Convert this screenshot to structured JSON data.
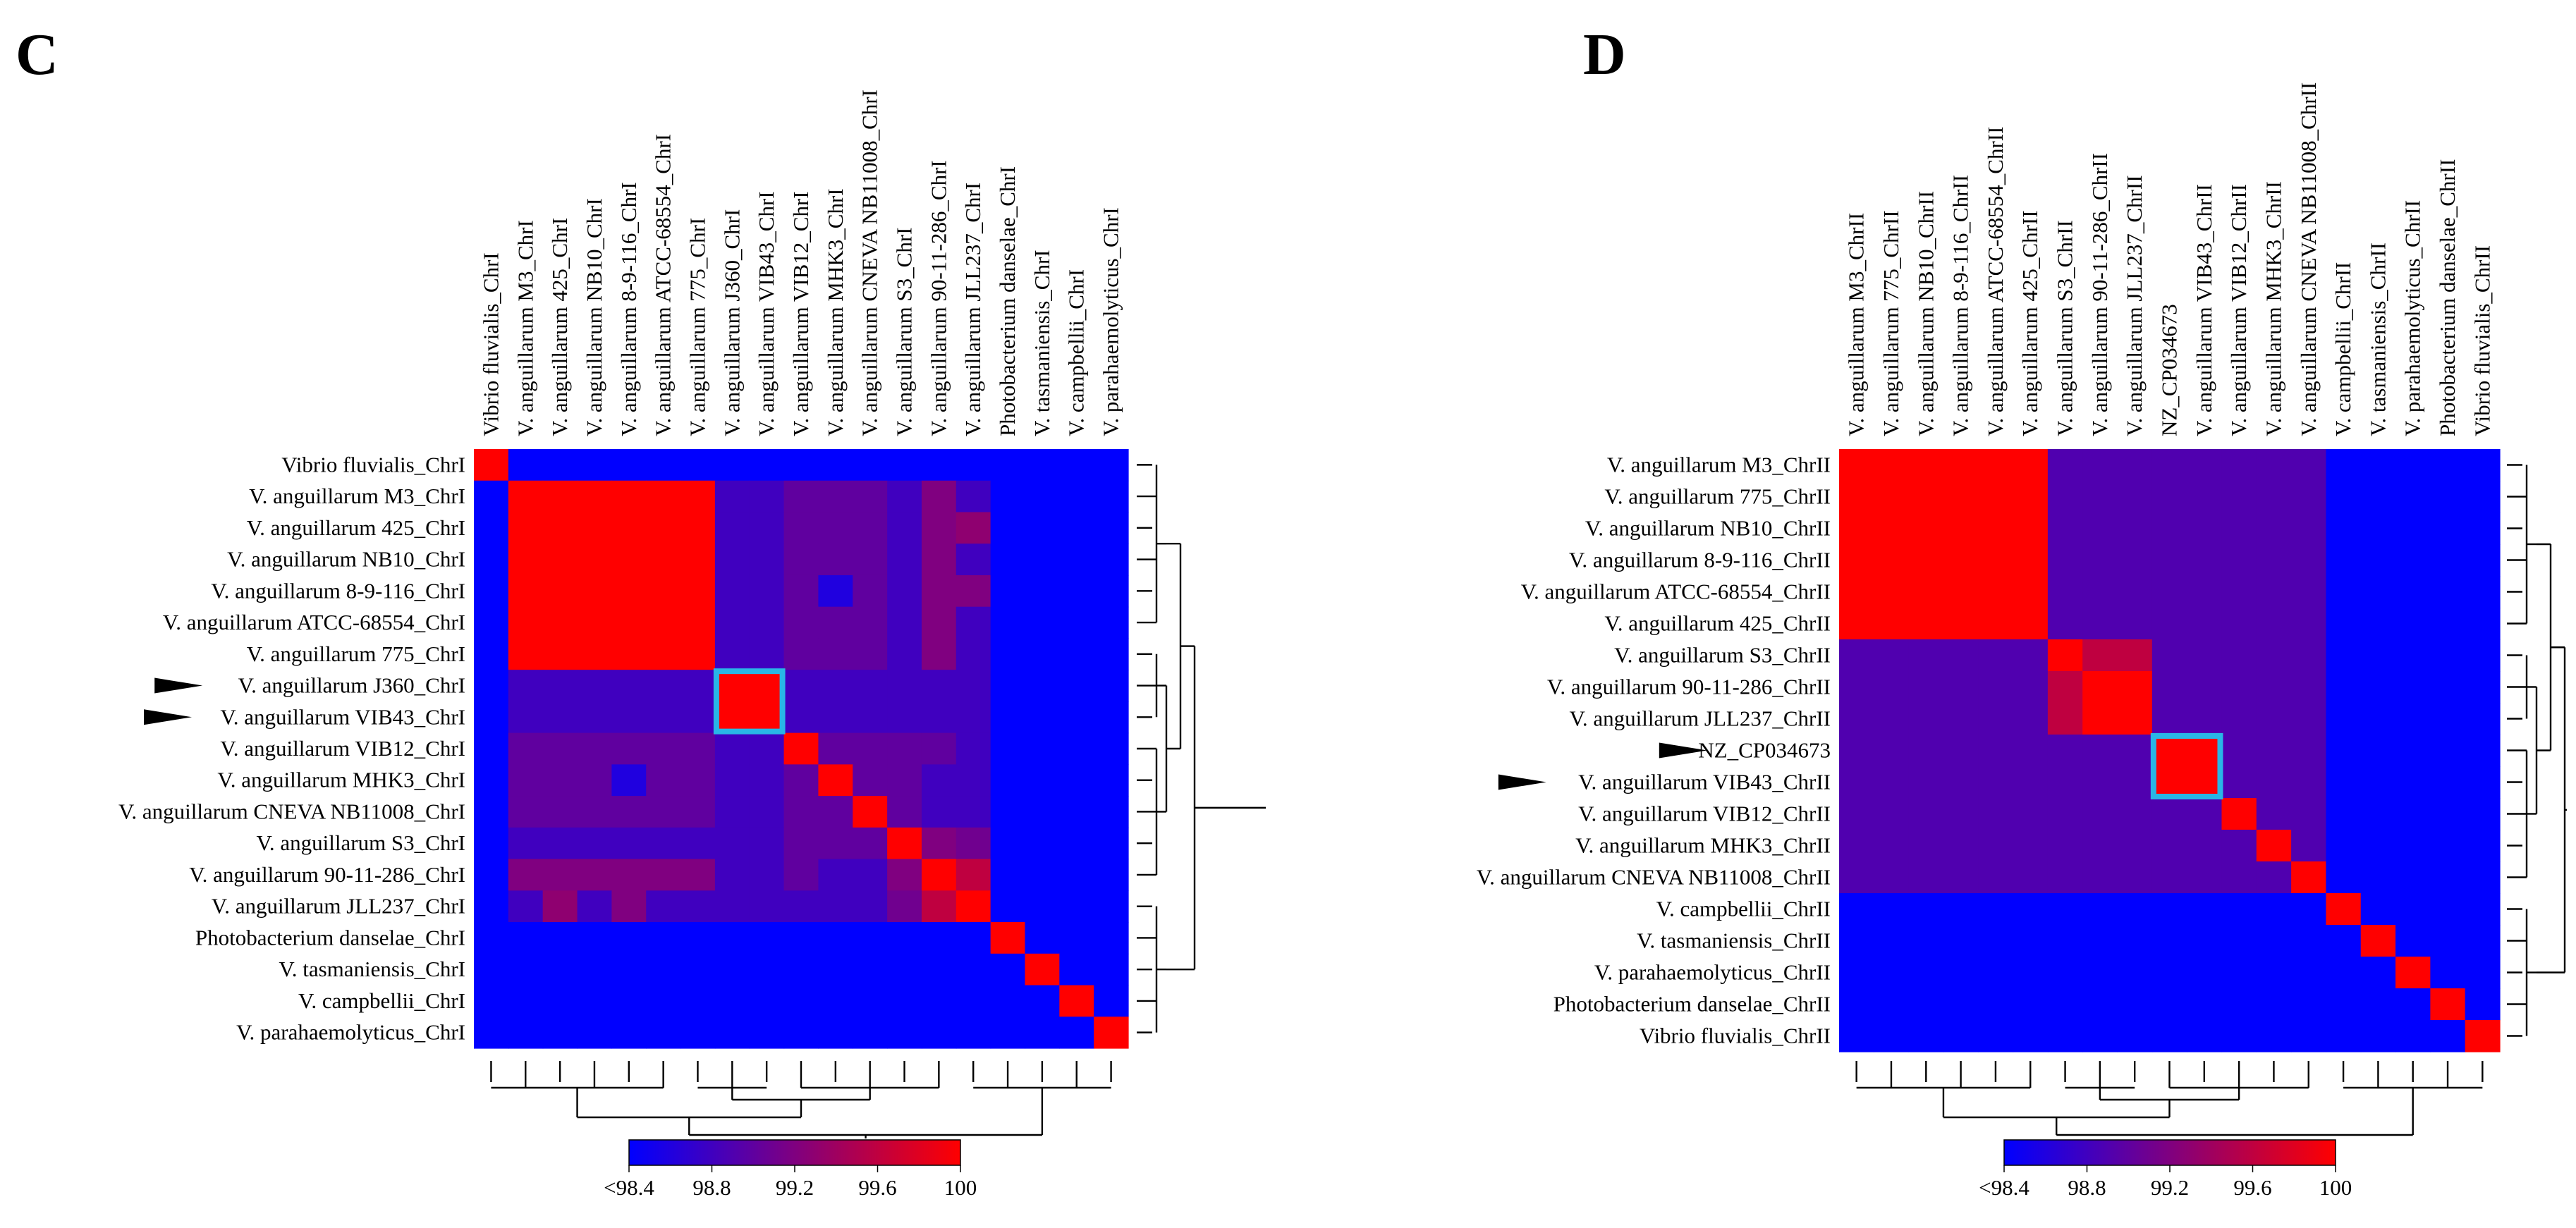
{
  "colors": {
    "low": "#0000ff",
    "high": "#ff0000",
    "highlight": "#29b6e6",
    "line": "#000000"
  },
  "chart_data": [
    {
      "type": "heatmap",
      "panel_label": "C",
      "title": "",
      "color_scale": {
        "min_label": "<98.4",
        "max": 100,
        "ticks": [
          "<98.4",
          "98.8",
          "99.2",
          "99.6",
          "100"
        ],
        "range": [
          98.4,
          100
        ]
      },
      "columns": [
        "Vibrio fluvialis_ChrI",
        "V. anguillarum M3_ChrI",
        "V. anguillarum 425_ChrI",
        "V. anguillarum NB10_ChrI",
        "V. anguillarum 8-9-116_ChrI",
        "V. anguillarum ATCC-68554_ChrI",
        "V. anguillarum 775_ChrI",
        "V. anguillarum J360_ChrI",
        "V. anguillarum VIB43_ChrI",
        "V. anguillarum VIB12_ChrI",
        "V. anguillarum MHK3_ChrI",
        "V. anguillarum CNEVA NB11008_ChrI",
        "V. anguillarum S3_ChrI",
        "V. anguillarum 90-11-286_ChrI",
        "V. anguillarum JLL237_ChrI",
        "Photobacterium danselae_ChrI",
        "V. tasmaniensis_ChrI",
        "V. campbellii_ChrI",
        "V. parahaemolyticus_ChrI"
      ],
      "rows": [
        "Vibrio fluvialis_ChrI",
        "V. anguillarum M3_ChrI",
        "V. anguillarum 425_ChrI",
        "V. anguillarum NB10_ChrI",
        "V. anguillarum 8-9-116_ChrI",
        "V. anguillarum ATCC-68554_ChrI",
        "V. anguillarum 775_ChrI",
        "V. anguillarum J360_ChrI",
        "V. anguillarum VIB43_ChrI",
        "V. anguillarum VIB12_ChrI",
        "V. anguillarum MHK3_ChrI",
        "V. anguillarum CNEVA NB11008_ChrI",
        "V. anguillarum S3_ChrI",
        "V. anguillarum 90-11-286_ChrI",
        "V. anguillarum JLL237_ChrI",
        "Photobacterium danselae_ChrI",
        "V. tasmaniensis_ChrI",
        "V. campbellii_ChrI",
        "V. parahaemolyticus_ChrI"
      ],
      "arrow_rows": [
        7,
        8
      ],
      "highlight_block": [
        7,
        8
      ],
      "values": [
        [
          100,
          98.4,
          98.4,
          98.4,
          98.4,
          98.4,
          98.4,
          98.4,
          98.4,
          98.4,
          98.4,
          98.4,
          98.4,
          98.4,
          98.4,
          98.4,
          98.4,
          98.4,
          98.4
        ],
        [
          98.4,
          100,
          100,
          100,
          100,
          100,
          100,
          98.8,
          98.8,
          99.0,
          99.0,
          99.0,
          98.8,
          99.2,
          98.8,
          98.4,
          98.4,
          98.4,
          98.4
        ],
        [
          98.4,
          100,
          100,
          100,
          100,
          100,
          100,
          98.8,
          98.8,
          99.0,
          99.0,
          99.0,
          98.8,
          99.2,
          99.3,
          98.4,
          98.4,
          98.4,
          98.4
        ],
        [
          98.4,
          100,
          100,
          100,
          100,
          100,
          100,
          98.8,
          98.8,
          99.0,
          99.0,
          99.0,
          98.8,
          99.2,
          98.8,
          98.4,
          98.4,
          98.4,
          98.4
        ],
        [
          98.4,
          100,
          100,
          100,
          100,
          100,
          100,
          98.8,
          98.8,
          99.0,
          98.6,
          99.0,
          98.8,
          99.2,
          99.2,
          98.4,
          98.4,
          98.4,
          98.4
        ],
        [
          98.4,
          100,
          100,
          100,
          100,
          100,
          100,
          98.8,
          98.8,
          99.0,
          99.0,
          99.0,
          98.8,
          99.2,
          98.8,
          98.4,
          98.4,
          98.4,
          98.4
        ],
        [
          98.4,
          100,
          100,
          100,
          100,
          100,
          100,
          98.8,
          98.8,
          99.0,
          99.0,
          99.0,
          98.8,
          99.2,
          98.8,
          98.4,
          98.4,
          98.4,
          98.4
        ],
        [
          98.4,
          98.8,
          98.8,
          98.8,
          98.8,
          98.8,
          98.8,
          100,
          100,
          98.8,
          98.8,
          98.8,
          98.8,
          98.8,
          98.8,
          98.4,
          98.4,
          98.4,
          98.4
        ],
        [
          98.4,
          98.8,
          98.8,
          98.8,
          98.8,
          98.8,
          98.8,
          100,
          100,
          98.8,
          98.8,
          98.8,
          98.8,
          98.8,
          98.8,
          98.4,
          98.4,
          98.4,
          98.4
        ],
        [
          98.4,
          99.0,
          99.0,
          99.0,
          99.0,
          99.0,
          99.0,
          98.8,
          98.8,
          100,
          99.0,
          99.0,
          99.0,
          99.0,
          98.8,
          98.4,
          98.4,
          98.4,
          98.4
        ],
        [
          98.4,
          99.0,
          99.0,
          99.0,
          98.6,
          99.0,
          99.0,
          98.8,
          98.8,
          99.0,
          100,
          99.0,
          99.0,
          98.8,
          98.8,
          98.4,
          98.4,
          98.4,
          98.4
        ],
        [
          98.4,
          99.0,
          99.0,
          99.0,
          99.0,
          99.0,
          99.0,
          98.8,
          98.8,
          99.0,
          99.0,
          100,
          99.0,
          98.8,
          98.8,
          98.4,
          98.4,
          98.4,
          98.4
        ],
        [
          98.4,
          98.8,
          98.8,
          98.8,
          98.8,
          98.8,
          98.8,
          98.8,
          98.8,
          99.0,
          99.0,
          99.0,
          100,
          99.2,
          99.1,
          98.4,
          98.4,
          98.4,
          98.4
        ],
        [
          98.4,
          99.2,
          99.2,
          99.2,
          99.2,
          99.2,
          99.2,
          98.8,
          98.8,
          99.0,
          98.8,
          98.8,
          99.2,
          100,
          99.6,
          98.4,
          98.4,
          98.4,
          98.4
        ],
        [
          98.4,
          98.8,
          99.3,
          98.8,
          99.2,
          98.8,
          98.8,
          98.8,
          98.8,
          98.8,
          98.8,
          98.8,
          99.1,
          99.6,
          100,
          98.4,
          98.4,
          98.4,
          98.4
        ],
        [
          98.4,
          98.4,
          98.4,
          98.4,
          98.4,
          98.4,
          98.4,
          98.4,
          98.4,
          98.4,
          98.4,
          98.4,
          98.4,
          98.4,
          98.4,
          100,
          98.4,
          98.4,
          98.4
        ],
        [
          98.4,
          98.4,
          98.4,
          98.4,
          98.4,
          98.4,
          98.4,
          98.4,
          98.4,
          98.4,
          98.4,
          98.4,
          98.4,
          98.4,
          98.4,
          98.4,
          100,
          98.4,
          98.4
        ],
        [
          98.4,
          98.4,
          98.4,
          98.4,
          98.4,
          98.4,
          98.4,
          98.4,
          98.4,
          98.4,
          98.4,
          98.4,
          98.4,
          98.4,
          98.4,
          98.4,
          98.4,
          100,
          98.4
        ],
        [
          98.4,
          98.4,
          98.4,
          98.4,
          98.4,
          98.4,
          98.4,
          98.4,
          98.4,
          98.4,
          98.4,
          98.4,
          98.4,
          98.4,
          98.4,
          98.4,
          98.4,
          98.4,
          100
        ]
      ]
    },
    {
      "type": "heatmap",
      "panel_label": "D",
      "title": "",
      "color_scale": {
        "min_label": "<98.4",
        "max": 100,
        "ticks": [
          "<98.4",
          "98.8",
          "99.2",
          "99.6",
          "100"
        ],
        "range": [
          98.4,
          100
        ]
      },
      "columns": [
        "V. anguillarum M3_ChrII",
        "V. anguillarum 775_ChrII",
        "V. anguillarum NB10_ChrII",
        "V. anguillarum 8-9-116_ChrII",
        "V. anguillarum ATCC-68554_ChrII",
        "V. anguillarum 425_ChrII",
        "V. anguillarum S3_ChrII",
        "V. anguillarum 90-11-286_ChrII",
        "V. anguillarum JLL237_ChrII",
        "NZ_CP034673",
        "V. anguillarum VIB43_ChrII",
        "V. anguillarum VIB12_ChrII",
        "V. anguillarum MHK3_ChrII",
        "V. anguillarum CNEVA NB11008_ChrII",
        "V. campbellii_ChrII",
        "V. tasmaniensis_ChrII",
        "V. parahaemolyticus_ChrII",
        "Photobacterium danselae_ChrII",
        "Vibrio fluvialis_ChrII"
      ],
      "rows": [
        "V. anguillarum M3_ChrII",
        "V. anguillarum 775_ChrII",
        "V. anguillarum NB10_ChrII",
        "V. anguillarum 8-9-116_ChrII",
        "V. anguillarum ATCC-68554_ChrII",
        "V. anguillarum 425_ChrII",
        "V. anguillarum S3_ChrII",
        "V. anguillarum 90-11-286_ChrII",
        "V. anguillarum JLL237_ChrII",
        "NZ_CP034673",
        "V. anguillarum VIB43_ChrII",
        "V. anguillarum VIB12_ChrII",
        "V. anguillarum MHK3_ChrII",
        "V. anguillarum CNEVA NB11008_ChrII",
        "V. campbellii_ChrII",
        "V. tasmaniensis_ChrII",
        "V. parahaemolyticus_ChrII",
        "Photobacterium danselae_ChrII",
        "Vibrio fluvialis_ChrII"
      ],
      "arrow_rows": [
        9,
        10
      ],
      "highlight_block": [
        9,
        10
      ],
      "values": [
        [
          100,
          100,
          100,
          100,
          100,
          100,
          98.9,
          98.9,
          98.9,
          98.9,
          98.9,
          98.9,
          98.9,
          98.9,
          98.4,
          98.4,
          98.4,
          98.4,
          98.4
        ],
        [
          100,
          100,
          100,
          100,
          100,
          100,
          98.9,
          98.9,
          98.9,
          98.9,
          98.9,
          98.9,
          98.9,
          98.9,
          98.4,
          98.4,
          98.4,
          98.4,
          98.4
        ],
        [
          100,
          100,
          100,
          100,
          100,
          100,
          98.9,
          98.9,
          98.9,
          98.9,
          98.9,
          98.9,
          98.9,
          98.9,
          98.4,
          98.4,
          98.4,
          98.4,
          98.4
        ],
        [
          100,
          100,
          100,
          100,
          100,
          100,
          98.9,
          98.9,
          98.9,
          98.9,
          98.9,
          98.9,
          98.9,
          98.9,
          98.4,
          98.4,
          98.4,
          98.4,
          98.4
        ],
        [
          100,
          100,
          100,
          100,
          100,
          100,
          98.9,
          98.9,
          98.9,
          98.9,
          98.9,
          98.9,
          98.9,
          98.9,
          98.4,
          98.4,
          98.4,
          98.4,
          98.4
        ],
        [
          100,
          100,
          100,
          100,
          100,
          100,
          98.9,
          98.9,
          98.9,
          98.9,
          98.9,
          98.9,
          98.9,
          98.9,
          98.4,
          98.4,
          98.4,
          98.4,
          98.4
        ],
        [
          98.9,
          98.9,
          98.9,
          98.9,
          98.9,
          98.9,
          100,
          99.6,
          99.6,
          98.9,
          98.9,
          98.9,
          98.9,
          98.9,
          98.4,
          98.4,
          98.4,
          98.4,
          98.4
        ],
        [
          98.9,
          98.9,
          98.9,
          98.9,
          98.9,
          98.9,
          99.6,
          100,
          100,
          98.9,
          98.9,
          98.9,
          98.9,
          98.9,
          98.4,
          98.4,
          98.4,
          98.4,
          98.4
        ],
        [
          98.9,
          98.9,
          98.9,
          98.9,
          98.9,
          98.9,
          99.6,
          100,
          100,
          98.9,
          98.9,
          98.9,
          98.9,
          98.9,
          98.4,
          98.4,
          98.4,
          98.4,
          98.4
        ],
        [
          98.9,
          98.9,
          98.9,
          98.9,
          98.9,
          98.9,
          98.9,
          98.9,
          98.9,
          100,
          100,
          98.9,
          98.9,
          98.9,
          98.4,
          98.4,
          98.4,
          98.4,
          98.4
        ],
        [
          98.9,
          98.9,
          98.9,
          98.9,
          98.9,
          98.9,
          98.9,
          98.9,
          98.9,
          100,
          100,
          98.9,
          98.9,
          98.9,
          98.4,
          98.4,
          98.4,
          98.4,
          98.4
        ],
        [
          98.9,
          98.9,
          98.9,
          98.9,
          98.9,
          98.9,
          98.9,
          98.9,
          98.9,
          98.9,
          98.9,
          100,
          98.9,
          98.9,
          98.4,
          98.4,
          98.4,
          98.4,
          98.4
        ],
        [
          98.9,
          98.9,
          98.9,
          98.9,
          98.9,
          98.9,
          98.9,
          98.9,
          98.9,
          98.9,
          98.9,
          98.9,
          100,
          98.9,
          98.4,
          98.4,
          98.4,
          98.4,
          98.4
        ],
        [
          98.9,
          98.9,
          98.9,
          98.9,
          98.9,
          98.9,
          98.9,
          98.9,
          98.9,
          98.9,
          98.9,
          98.9,
          98.9,
          100,
          98.4,
          98.4,
          98.4,
          98.4,
          98.4
        ],
        [
          98.4,
          98.4,
          98.4,
          98.4,
          98.4,
          98.4,
          98.4,
          98.4,
          98.4,
          98.4,
          98.4,
          98.4,
          98.4,
          98.4,
          100,
          98.4,
          98.4,
          98.4,
          98.4
        ],
        [
          98.4,
          98.4,
          98.4,
          98.4,
          98.4,
          98.4,
          98.4,
          98.4,
          98.4,
          98.4,
          98.4,
          98.4,
          98.4,
          98.4,
          98.4,
          100,
          98.4,
          98.4,
          98.4
        ],
        [
          98.4,
          98.4,
          98.4,
          98.4,
          98.4,
          98.4,
          98.4,
          98.4,
          98.4,
          98.4,
          98.4,
          98.4,
          98.4,
          98.4,
          98.4,
          98.4,
          100,
          98.4,
          98.4
        ],
        [
          98.4,
          98.4,
          98.4,
          98.4,
          98.4,
          98.4,
          98.4,
          98.4,
          98.4,
          98.4,
          98.4,
          98.4,
          98.4,
          98.4,
          98.4,
          98.4,
          98.4,
          100,
          98.4
        ],
        [
          98.4,
          98.4,
          98.4,
          98.4,
          98.4,
          98.4,
          98.4,
          98.4,
          98.4,
          98.4,
          98.4,
          98.4,
          98.4,
          98.4,
          98.4,
          98.4,
          98.4,
          98.4,
          100
        ]
      ]
    }
  ]
}
